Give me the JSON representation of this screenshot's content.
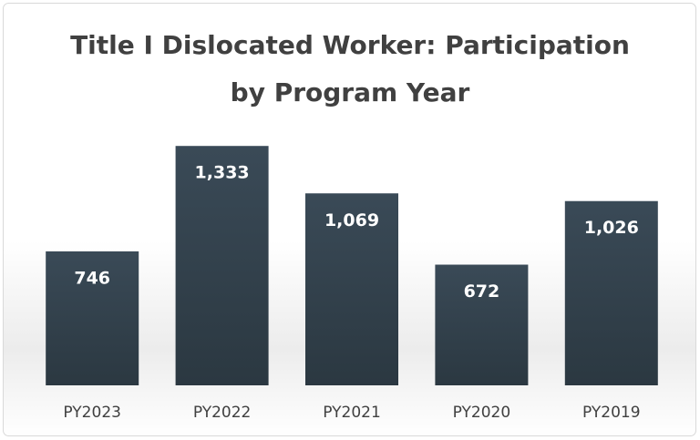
{
  "chart_data": {
    "type": "bar",
    "title": "Title I Dislocated Worker: Participation by Program Year",
    "categories": [
      "PY2023",
      "PY2022",
      "PY2021",
      "PY2020",
      "PY2019"
    ],
    "values": [
      746,
      1333,
      1069,
      672,
      1026
    ],
    "value_labels": [
      "746",
      "1,333",
      "1,069",
      "672",
      "1,026"
    ],
    "color": "#33434f",
    "ylim": [
      0,
      1400
    ]
  }
}
